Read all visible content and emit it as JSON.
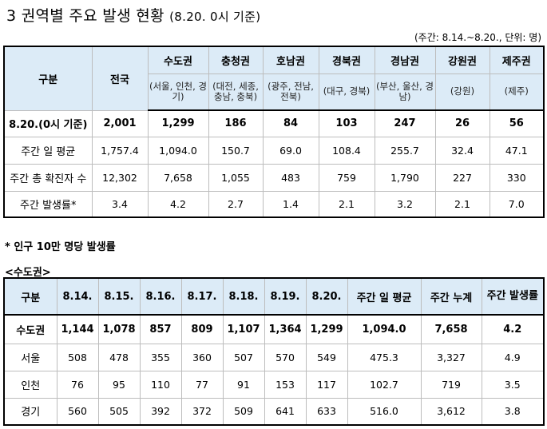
{
  "title": "3 권역별 주요 발생 현황",
  "title_sub": "(8.20. 0시 기준)",
  "unit": "(주간: 8.14.~8.20., 단위: 명)",
  "table1": {
    "header_gubun": "구분",
    "header_national": "전국",
    "regions": [
      {
        "name": "수도권",
        "sub": "(서울, 인천, 경기)"
      },
      {
        "name": "충청권",
        "sub": "(대전, 세종, 충남, 충북)"
      },
      {
        "name": "호남권",
        "sub": "(광주, 전남, 전북)"
      },
      {
        "name": "경북권",
        "sub": "(대구, 경북)"
      },
      {
        "name": "경남권",
        "sub": "(부산, 울산, 경남)"
      },
      {
        "name": "강원권",
        "sub": "(강원)"
      },
      {
        "name": "제주권",
        "sub": "(제주)"
      }
    ],
    "rows": [
      {
        "label": "8.20.(0시 기준)",
        "values": [
          "2,001",
          "1,299",
          "186",
          "84",
          "103",
          "247",
          "26",
          "56"
        ]
      },
      {
        "label": "주간 일 평균",
        "values": [
          "1,757.4",
          "1,094.0",
          "150.7",
          "69.0",
          "108.4",
          "255.7",
          "32.4",
          "47.1"
        ]
      },
      {
        "label": "주간 총 확진자 수",
        "values": [
          "12,302",
          "7,658",
          "1,055",
          "483",
          "759",
          "1,790",
          "227",
          "330"
        ]
      },
      {
        "label": "주간 발생률*",
        "values": [
          "3.4",
          "4.2",
          "2.7",
          "1.4",
          "2.1",
          "3.2",
          "2.1",
          "7.0"
        ]
      }
    ]
  },
  "note": "* 인구 10만 명당 발생률",
  "section_label": "<수도권>",
  "table2": {
    "headers": [
      "구분",
      "8.14.",
      "8.15.",
      "8.16.",
      "8.17.",
      "8.18.",
      "8.19.",
      "8.20.",
      "주간 일 평균",
      "주간 누계",
      "주간 발생률"
    ],
    "rows": [
      {
        "label": "수도권",
        "values": [
          "1,144",
          "1,078",
          "857",
          "809",
          "1,107",
          "1,364",
          "1,299",
          "1,094.0",
          "7,658",
          "4.2"
        ]
      },
      {
        "label": "서울",
        "values": [
          "508",
          "478",
          "355",
          "360",
          "507",
          "570",
          "549",
          "475.3",
          "3,327",
          "4.9"
        ]
      },
      {
        "label": "인천",
        "values": [
          "76",
          "95",
          "110",
          "77",
          "91",
          "153",
          "117",
          "102.7",
          "719",
          "3.5"
        ]
      },
      {
        "label": "경기",
        "values": [
          "560",
          "505",
          "392",
          "372",
          "509",
          "641",
          "633",
          "516.0",
          "3,612",
          "3.8"
        ]
      }
    ]
  }
}
